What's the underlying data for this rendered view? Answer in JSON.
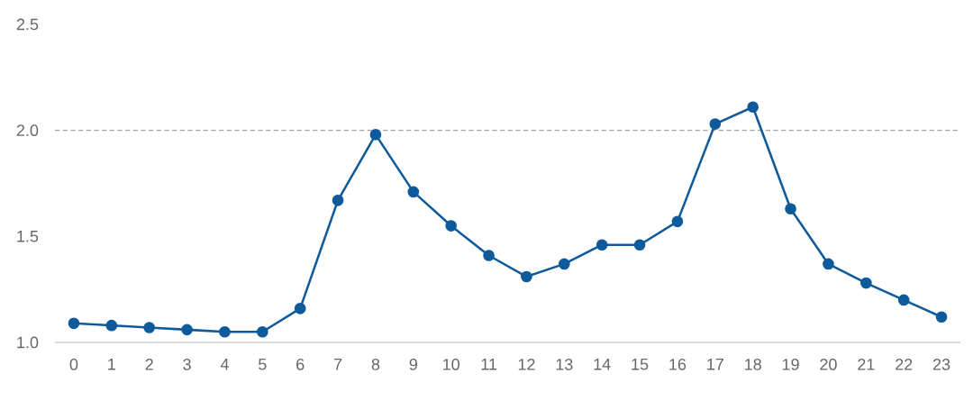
{
  "chart_data": {
    "type": "line",
    "categories": [
      "0",
      "1",
      "2",
      "3",
      "4",
      "5",
      "6",
      "7",
      "8",
      "9",
      "10",
      "11",
      "12",
      "13",
      "14",
      "15",
      "16",
      "17",
      "18",
      "19",
      "20",
      "21",
      "22",
      "23"
    ],
    "series": [
      {
        "color": "#0f5a9b",
        "values": [
          1.09,
          1.08,
          1.07,
          1.06,
          1.05,
          1.05,
          1.16,
          1.67,
          1.98,
          1.71,
          1.55,
          1.41,
          1.31,
          1.37,
          1.46,
          1.46,
          1.57,
          2.03,
          2.11,
          1.63,
          1.37,
          1.28,
          1.2,
          1.12
        ]
      }
    ],
    "ylim": [
      1.0,
      2.5
    ],
    "yticks": [
      {
        "value": 1.0,
        "label": "1.0"
      },
      {
        "value": 1.5,
        "label": "1.5"
      },
      {
        "value": 2.0,
        "label": "2.0"
      },
      {
        "value": 2.5,
        "label": "2.5"
      }
    ],
    "ref_lines": [
      {
        "axis": "y",
        "value": 2.0,
        "color": "#a6a6a6",
        "line_style": "dashed"
      }
    ],
    "marker": "circle",
    "line_style": "solid"
  }
}
